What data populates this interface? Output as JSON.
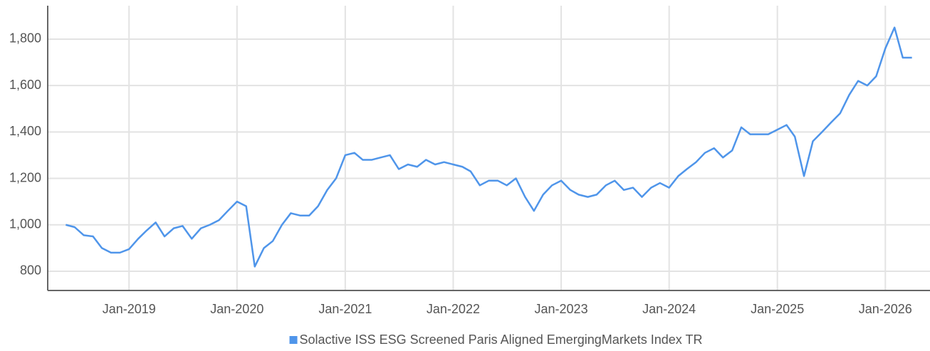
{
  "chart_data": {
    "type": "line",
    "x": [
      "Jun-2018",
      "Jul-2018",
      "Aug-2018",
      "Sep-2018",
      "Oct-2018",
      "Nov-2018",
      "Dec-2018",
      "Jan-2019",
      "Feb-2019",
      "Mar-2019",
      "Apr-2019",
      "May-2019",
      "Jun-2019",
      "Jul-2019",
      "Aug-2019",
      "Sep-2019",
      "Oct-2019",
      "Nov-2019",
      "Dec-2019",
      "Jan-2020",
      "Feb-2020",
      "Mar-2020",
      "Apr-2020",
      "May-2020",
      "Jun-2020",
      "Jul-2020",
      "Aug-2020",
      "Sep-2020",
      "Oct-2020",
      "Nov-2020",
      "Dec-2020",
      "Jan-2021",
      "Feb-2021",
      "Mar-2021",
      "Apr-2021",
      "May-2021",
      "Jun-2021",
      "Jul-2021",
      "Aug-2021",
      "Sep-2021",
      "Oct-2021",
      "Nov-2021",
      "Dec-2021",
      "Jan-2022",
      "Feb-2022",
      "Mar-2022",
      "Apr-2022",
      "May-2022",
      "Jun-2022",
      "Jul-2022",
      "Aug-2022",
      "Sep-2022",
      "Oct-2022",
      "Nov-2022",
      "Dec-2022",
      "Jan-2023",
      "Feb-2023",
      "Mar-2023",
      "Apr-2023",
      "May-2023",
      "Jun-2023",
      "Jul-2023",
      "Aug-2023",
      "Sep-2023",
      "Oct-2023",
      "Nov-2023",
      "Dec-2023",
      "Jan-2024",
      "Feb-2024",
      "Mar-2024",
      "Apr-2024",
      "May-2024",
      "Jun-2024",
      "Jul-2024",
      "Aug-2024",
      "Sep-2024",
      "Oct-2024",
      "Nov-2024",
      "Dec-2024",
      "Jan-2025",
      "Feb-2025",
      "Mar-2025",
      "Apr-2025",
      "May-2025",
      "Jun-2025",
      "Jul-2025",
      "Aug-2025",
      "Sep-2025",
      "Oct-2025",
      "Nov-2025",
      "Dec-2025",
      "Jan-2026",
      "Feb-2026",
      "Mar-2026",
      "Apr-2026"
    ],
    "series": [
      {
        "name": "Solactive ISS ESG Screened Paris Aligned EmergingMarkets Index TR",
        "color": "#4f95ea",
        "values": [
          1000,
          990,
          955,
          950,
          900,
          880,
          880,
          895,
          940,
          975,
          1010,
          950,
          985,
          995,
          940,
          985,
          1000,
          1020,
          1060,
          1100,
          1080,
          820,
          900,
          930,
          1000,
          1050,
          1040,
          1040,
          1080,
          1150,
          1200,
          1300,
          1310,
          1280,
          1280,
          1290,
          1300,
          1240,
          1260,
          1250,
          1280,
          1260,
          1270,
          1260,
          1250,
          1230,
          1170,
          1190,
          1190,
          1170,
          1200,
          1120,
          1060,
          1130,
          1170,
          1190,
          1150,
          1130,
          1120,
          1130,
          1170,
          1190,
          1150,
          1160,
          1120,
          1160,
          1180,
          1160,
          1210,
          1240,
          1270,
          1310,
          1330,
          1290,
          1320,
          1420,
          1390,
          1390,
          1390,
          1410,
          1430,
          1380,
          1210,
          1360,
          1400,
          1440,
          1480,
          1560,
          1620,
          1600,
          1640,
          1760,
          1850,
          1720,
          1720
        ]
      }
    ],
    "xlim": [
      "Apr-2018",
      "Jun-2026"
    ],
    "xticks": [
      "Jan-2019",
      "Jan-2020",
      "Jan-2021",
      "Jan-2022",
      "Jan-2023",
      "Jan-2024",
      "Jan-2025",
      "Jan-2026"
    ],
    "ylim": [
      717,
      1944
    ],
    "yticks": [
      800,
      {
        "value": 1000,
        "label": "1,000"
      },
      {
        "value": 1200,
        "label": "1,200"
      },
      {
        "value": 1400,
        "label": "1,400"
      },
      {
        "value": 1600,
        "label": "1,600"
      },
      {
        "value": 1800,
        "label": "1,800"
      }
    ],
    "grid": true,
    "legend": "bottom"
  }
}
